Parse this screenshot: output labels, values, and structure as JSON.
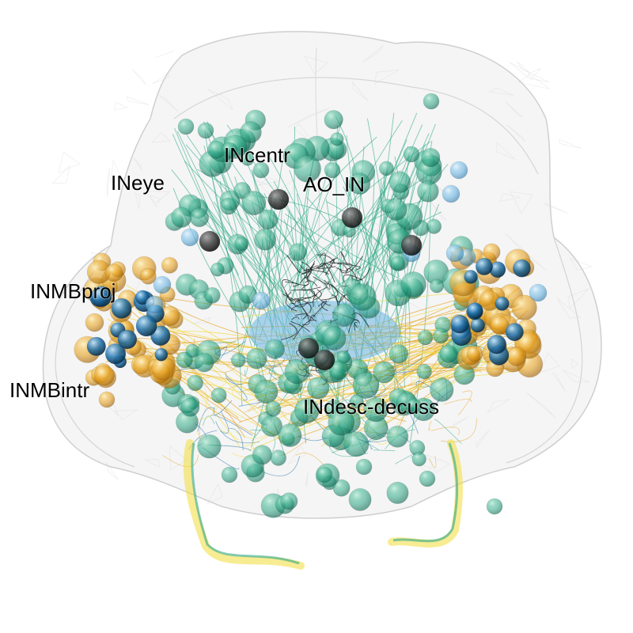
{
  "labels": {
    "ineye": "INeye",
    "incentr": "INcentr",
    "ao_in": "AO_IN",
    "inmbproj": "INMBproj",
    "inmbintr": "INMBintr",
    "indesc_decuss": "INdesc-decuss"
  },
  "colors": {
    "mesh": "#e8e8e8",
    "mesh_stroke": "#d0d0d0",
    "green": "#2ea886",
    "green_light": "#7fcbb0",
    "yellow": "#f2dc3a",
    "orange": "#e8a423",
    "blue": "#1f6fa8",
    "light_blue": "#6ab4e0",
    "black": "#1a1a1a"
  }
}
